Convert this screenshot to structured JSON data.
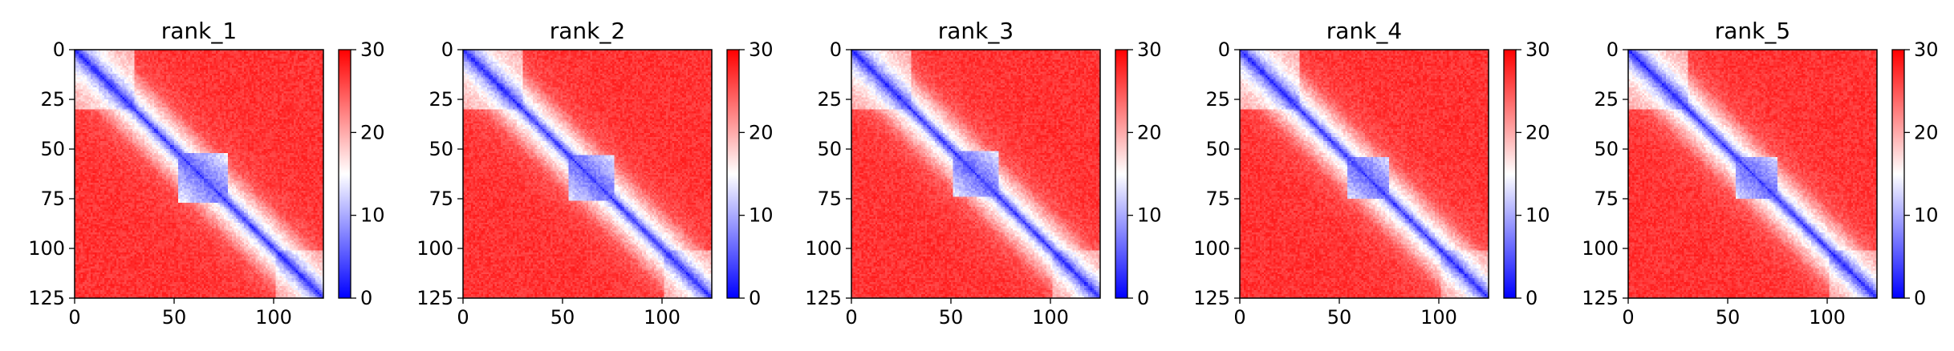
{
  "chart_data": [
    {
      "type": "heatmap",
      "title": "rank_1",
      "x_ticks": [
        "0",
        "50",
        "100"
      ],
      "y_ticks": [
        "0",
        "25",
        "50",
        "75",
        "100",
        "125"
      ],
      "x_range": [
        0,
        125
      ],
      "y_range": [
        0,
        125
      ],
      "colorbar": {
        "range": [
          0,
          30
        ],
        "ticks": [
          "0",
          "10",
          "20",
          "30"
        ],
        "colormap": "bwr"
      },
      "pattern": {
        "block_center": 64,
        "block_half_width": 12,
        "seed": 11
      }
    },
    {
      "type": "heatmap",
      "title": "rank_2",
      "x_ticks": [
        "0",
        "50",
        "100"
      ],
      "y_ticks": [
        "0",
        "25",
        "50",
        "75",
        "100",
        "125"
      ],
      "x_range": [
        0,
        125
      ],
      "y_range": [
        0,
        125
      ],
      "colorbar": {
        "range": [
          0,
          30
        ],
        "ticks": [
          "0",
          "10",
          "20",
          "30"
        ],
        "colormap": "bwr"
      },
      "pattern": {
        "block_center": 64,
        "block_half_width": 11,
        "seed": 23
      }
    },
    {
      "type": "heatmap",
      "title": "rank_3",
      "x_ticks": [
        "0",
        "50",
        "100"
      ],
      "y_ticks": [
        "0",
        "25",
        "50",
        "75",
        "100",
        "125"
      ],
      "x_range": [
        0,
        125
      ],
      "y_range": [
        0,
        125
      ],
      "colorbar": {
        "range": [
          0,
          30
        ],
        "ticks": [
          "0",
          "10",
          "20",
          "30"
        ],
        "colormap": "bwr"
      },
      "pattern": {
        "block_center": 62,
        "block_half_width": 11,
        "seed": 37
      }
    },
    {
      "type": "heatmap",
      "title": "rank_4",
      "x_ticks": [
        "0",
        "50",
        "100"
      ],
      "y_ticks": [
        "0",
        "25",
        "50",
        "75",
        "100",
        "125"
      ],
      "x_range": [
        0,
        125
      ],
      "y_range": [
        0,
        125
      ],
      "colorbar": {
        "range": [
          0,
          30
        ],
        "ticks": [
          "0",
          "10",
          "20",
          "30"
        ],
        "colormap": "bwr"
      },
      "pattern": {
        "block_center": 64,
        "block_half_width": 10,
        "seed": 41
      }
    },
    {
      "type": "heatmap",
      "title": "rank_5",
      "x_ticks": [
        "0",
        "50",
        "100"
      ],
      "y_ticks": [
        "0",
        "25",
        "50",
        "75",
        "100",
        "125"
      ],
      "x_range": [
        0,
        125
      ],
      "y_range": [
        0,
        125
      ],
      "colorbar": {
        "range": [
          0,
          30
        ],
        "ticks": [
          "0",
          "10",
          "20",
          "30"
        ],
        "colormap": "bwr"
      },
      "pattern": {
        "block_center": 64,
        "block_half_width": 10,
        "seed": 53
      }
    }
  ]
}
